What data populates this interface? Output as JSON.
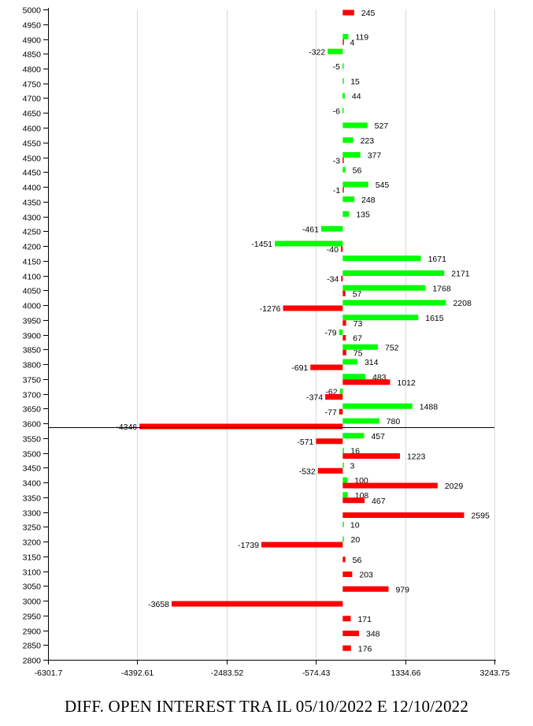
{
  "chart_data": {
    "type": "bar",
    "orientation": "horizontal",
    "title": "DIFF. OPEN INTEREST TRA IL 05/10/2022 E 12/10/2022",
    "xlim": [
      -6301.7,
      3243.75
    ],
    "x_ticks": [
      "-6301.7",
      "-4392.61",
      "-2483.52",
      "-574.43",
      "1334.66",
      "3243.75"
    ],
    "x_tick_values": [
      -6301.7,
      -4392.61,
      -2483.52,
      -574.43,
      1334.66,
      3243.75
    ],
    "ylim": [
      2800,
      5000
    ],
    "y_ticks": [
      5000,
      4950,
      4900,
      4850,
      4800,
      4750,
      4700,
      4650,
      4600,
      4550,
      4500,
      4450,
      4400,
      4350,
      4300,
      4250,
      4200,
      4150,
      4100,
      4050,
      4000,
      3950,
      3900,
      3850,
      3800,
      3750,
      3700,
      3650,
      3600,
      3550,
      3500,
      3450,
      3400,
      3350,
      3300,
      3250,
      3200,
      3150,
      3100,
      3050,
      3000,
      2950,
      2900,
      2850,
      2800
    ],
    "reference_line": 3587,
    "grid": "vertical",
    "colors": {
      "green": "#00ff00",
      "red": "#ff0000",
      "grid": "#d8d8d8",
      "reference": "#000000"
    },
    "series": [
      {
        "color": "green",
        "points": [
          {
            "strike": 4900,
            "value": 119
          },
          {
            "strike": 4850,
            "value": -322
          },
          {
            "strike": 4800,
            "value": -5
          },
          {
            "strike": 4750,
            "value": 15
          },
          {
            "strike": 4700,
            "value": 44
          },
          {
            "strike": 4650,
            "value": -6
          },
          {
            "strike": 4600,
            "value": 527
          },
          {
            "strike": 4550,
            "value": 223
          },
          {
            "strike": 4500,
            "value": 377
          },
          {
            "strike": 4450,
            "value": 56
          },
          {
            "strike": 4400,
            "value": 545
          },
          {
            "strike": 4350,
            "value": 248
          },
          {
            "strike": 4300,
            "value": 135
          },
          {
            "strike": 4250,
            "value": -461
          },
          {
            "strike": 4200,
            "value": -1451
          },
          {
            "strike": 4150,
            "value": 1671
          },
          {
            "strike": 4100,
            "value": 2171
          },
          {
            "strike": 4050,
            "value": 1768
          },
          {
            "strike": 4000,
            "value": 2208
          },
          {
            "strike": 3950,
            "value": 1615
          },
          {
            "strike": 3900,
            "value": -79
          },
          {
            "strike": 3850,
            "value": 752
          },
          {
            "strike": 3800,
            "value": 314
          },
          {
            "strike": 3750,
            "value": 483
          },
          {
            "strike": 3700,
            "value": -62
          },
          {
            "strike": 3650,
            "value": 1488
          },
          {
            "strike": 3600,
            "value": 780
          },
          {
            "strike": 3550,
            "value": 457
          },
          {
            "strike": 3500,
            "value": 16
          },
          {
            "strike": 3450,
            "value": 3
          },
          {
            "strike": 3400,
            "value": 100
          },
          {
            "strike": 3350,
            "value": 108
          },
          {
            "strike": 3250,
            "value": 10
          },
          {
            "strike": 3200,
            "value": 20
          }
        ]
      },
      {
        "color": "red",
        "points": [
          {
            "strike": 5000,
            "value": 245
          },
          {
            "strike": 4900,
            "value": 4
          },
          {
            "strike": 4500,
            "value": -3
          },
          {
            "strike": 4400,
            "value": -1
          },
          {
            "strike": 4200,
            "value": -40
          },
          {
            "strike": 4100,
            "value": -34
          },
          {
            "strike": 4050,
            "value": 57
          },
          {
            "strike": 4000,
            "value": -1276
          },
          {
            "strike": 3950,
            "value": 73
          },
          {
            "strike": 3900,
            "value": 67
          },
          {
            "strike": 3850,
            "value": 75
          },
          {
            "strike": 3800,
            "value": -691
          },
          {
            "strike": 3750,
            "value": 1012
          },
          {
            "strike": 3700,
            "value": -374
          },
          {
            "strike": 3650,
            "value": -77
          },
          {
            "strike": 3600,
            "value": -4346
          },
          {
            "strike": 3550,
            "value": -571
          },
          {
            "strike": 3500,
            "value": 1223
          },
          {
            "strike": 3450,
            "value": -532
          },
          {
            "strike": 3400,
            "value": 2029
          },
          {
            "strike": 3350,
            "value": 467
          },
          {
            "strike": 3300,
            "value": 2595
          },
          {
            "strike": 3200,
            "value": -1739
          },
          {
            "strike": 3150,
            "value": 56
          },
          {
            "strike": 3100,
            "value": 203
          },
          {
            "strike": 3050,
            "value": 979
          },
          {
            "strike": 3000,
            "value": -3658
          },
          {
            "strike": 2950,
            "value": 171
          },
          {
            "strike": 2900,
            "value": 348
          },
          {
            "strike": 2850,
            "value": 176
          }
        ]
      }
    ]
  }
}
